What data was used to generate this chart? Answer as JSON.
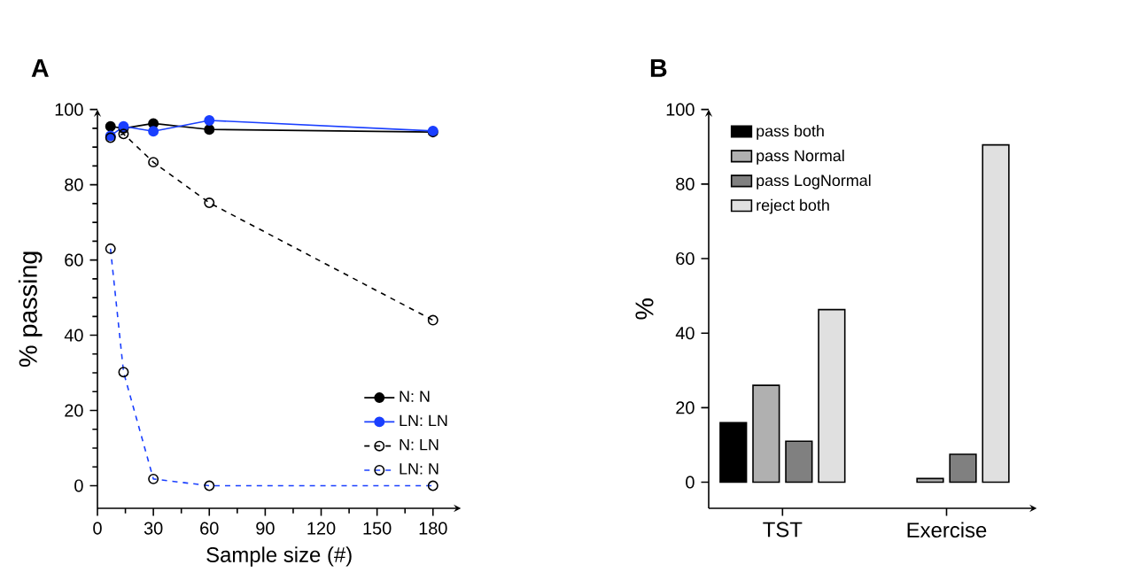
{
  "chart_data": [
    {
      "type": "line",
      "title": "A",
      "xlabel": "Sample size (#)",
      "ylabel": "% passing",
      "xlim": [
        0,
        195
      ],
      "xticks": [
        0,
        30,
        60,
        90,
        120,
        150,
        180
      ],
      "ylim": [
        -6,
        100
      ],
      "yticks": [
        0,
        20,
        40,
        60,
        80,
        100
      ],
      "legend": "bottom right",
      "series": [
        {
          "name": "N: N",
          "color": "#000000",
          "marker": "circle",
          "line_style": "solid",
          "x": [
            7,
            14,
            30,
            60,
            180
          ],
          "values": [
            95.5,
            95,
            96.3,
            94.7,
            94
          ]
        },
        {
          "name": "LN: LN",
          "color": "#1a3fff",
          "marker": "circle",
          "line_style": "solid",
          "x": [
            7,
            14,
            30,
            60,
            180
          ],
          "values": [
            93,
            95.5,
            94.2,
            97.1,
            94.3
          ]
        },
        {
          "name": "N: LN",
          "color": "#000000",
          "marker": "circle",
          "line_style": "dashed",
          "x": [
            7,
            14,
            30,
            60,
            180
          ],
          "values": [
            92.5,
            93.5,
            86,
            75.2,
            44
          ]
        },
        {
          "name": "LN: N",
          "color": "#1a3fff",
          "marker": "circle",
          "line_style": "dashed",
          "x": [
            7,
            14,
            30,
            60,
            180
          ],
          "values": [
            63,
            30.2,
            1.8,
            0,
            0
          ]
        }
      ]
    },
    {
      "type": "bar",
      "title": "B",
      "ylabel": "%",
      "categories": [
        "TST",
        "Exercise"
      ],
      "ylim": [
        -7,
        100
      ],
      "yticks": [
        0,
        20,
        40,
        60,
        80,
        100
      ],
      "legend": "top left",
      "series": [
        {
          "name": "pass both",
          "color": "#000000",
          "values": [
            16,
            null
          ]
        },
        {
          "name": "pass Normal",
          "color": "#b0b0b0",
          "values": [
            26,
            1
          ]
        },
        {
          "name": "pass LogNormal",
          "color": "#808080",
          "values": [
            11,
            7.5
          ]
        },
        {
          "name": "reject both",
          "color": "#e0e0e0",
          "values": [
            46.3,
            90.5
          ]
        }
      ]
    }
  ]
}
